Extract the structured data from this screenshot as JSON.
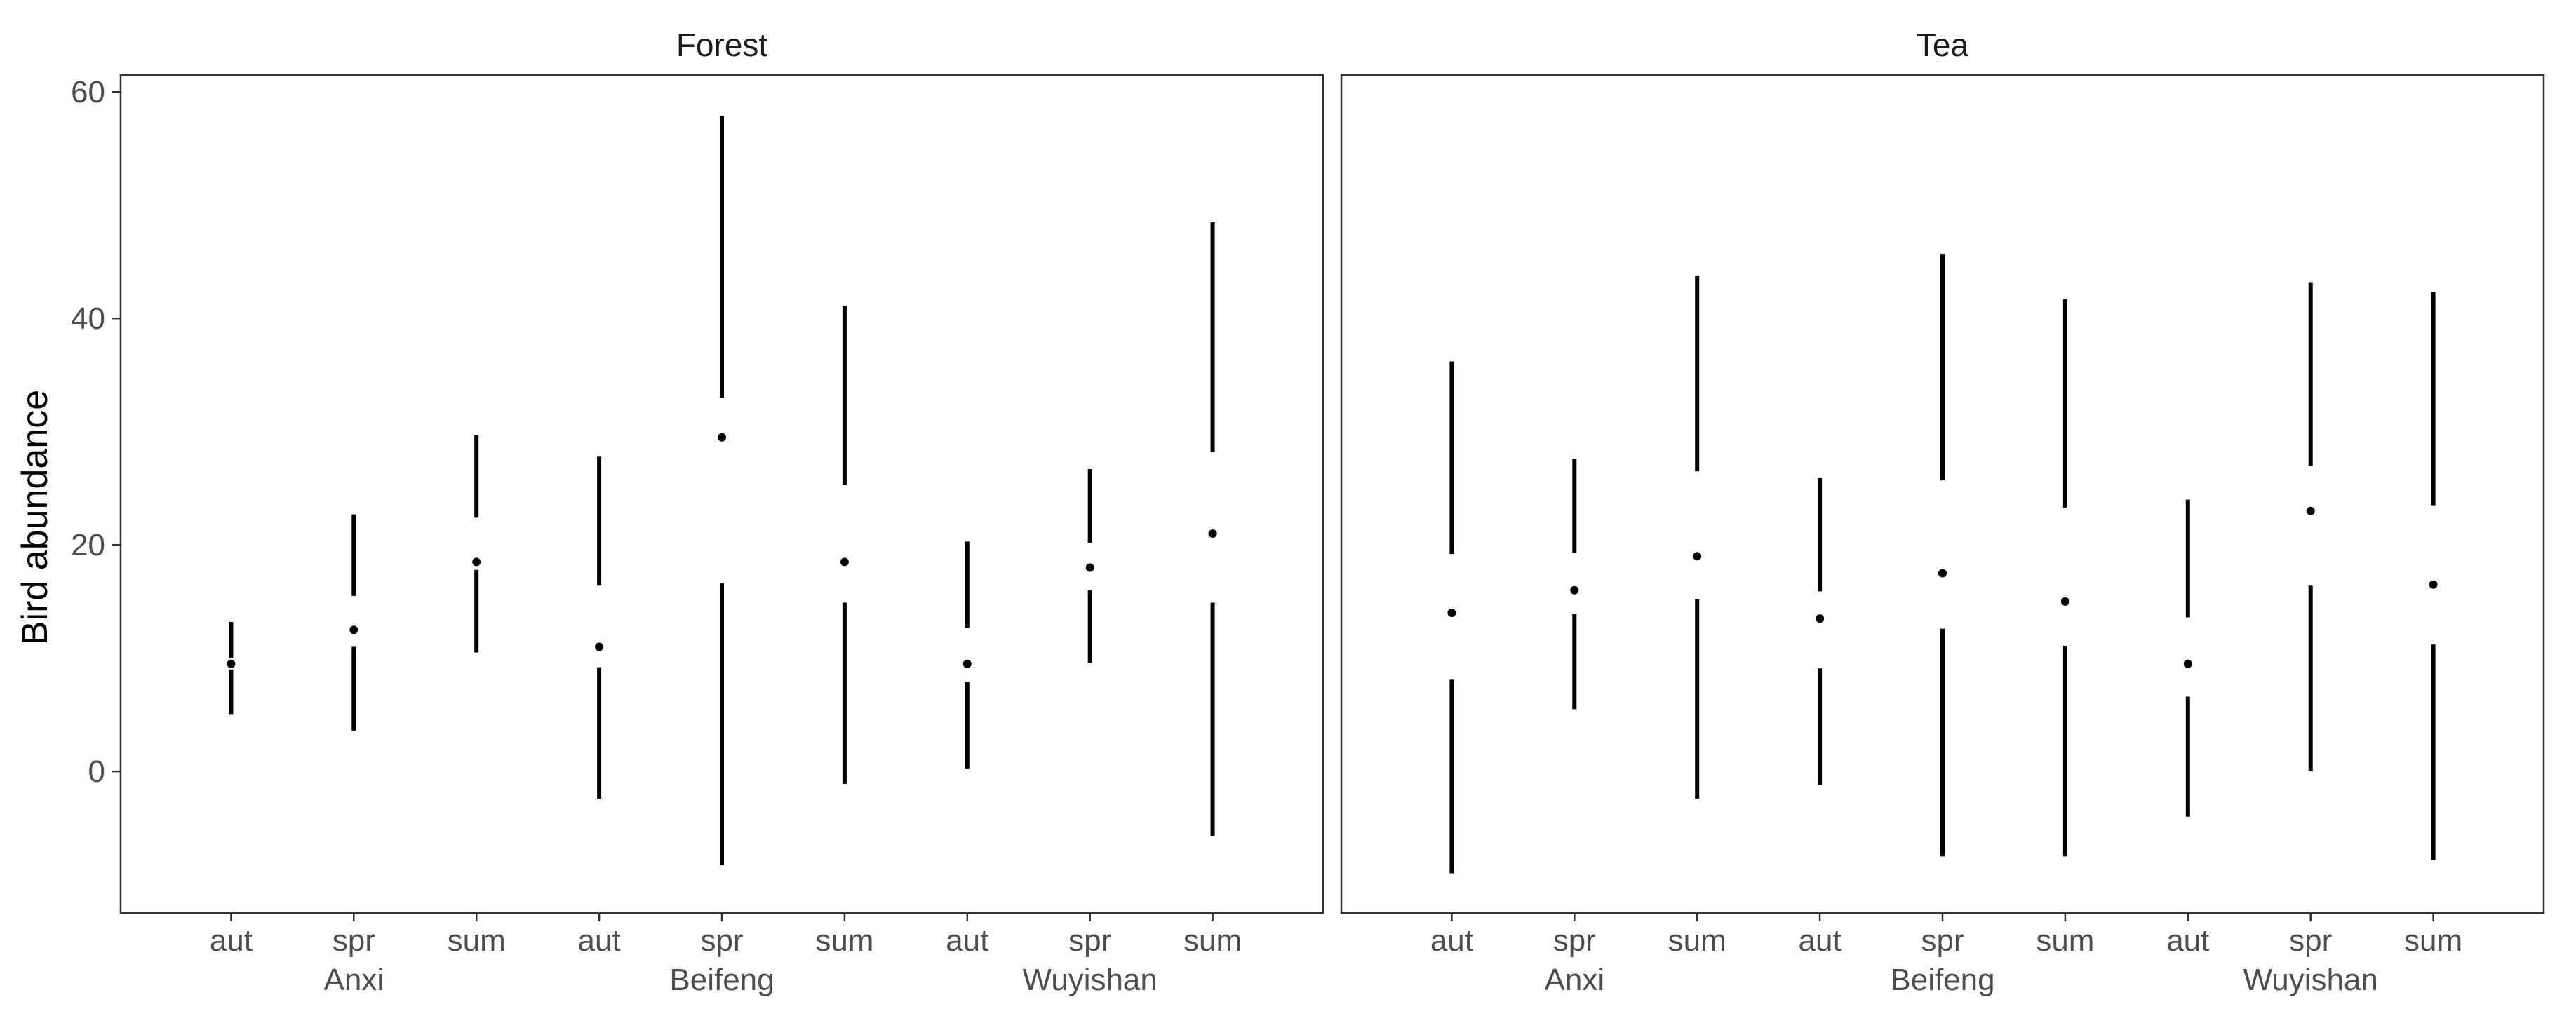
{
  "chart_data": {
    "type": "pointrange",
    "ylabel": "Bird abundance",
    "ylim": [
      -12.5,
      61.5
    ],
    "yticks": [
      0,
      20,
      40,
      60
    ],
    "groups": [
      "Anxi",
      "Beifeng",
      "Wuyishan"
    ],
    "seasons": [
      "aut",
      "spr",
      "sum"
    ],
    "panels": [
      {
        "title": "Forest",
        "points": [
          {
            "group": "Anxi",
            "season": "aut",
            "y": 9.5,
            "ymin": 5,
            "ymax": 13.2,
            "gap": [
              9,
              10
            ]
          },
          {
            "group": "Anxi",
            "season": "spr",
            "y": 12.5,
            "ymin": 3.6,
            "ymax": 22.7,
            "gap": [
              11,
              15.5
            ]
          },
          {
            "group": "Anxi",
            "season": "sum",
            "y": 18.5,
            "ymin": 10.5,
            "ymax": 29.7,
            "gap": [
              17.8,
              22.4
            ]
          },
          {
            "group": "Beifeng",
            "season": "aut",
            "y": 11,
            "ymin": -2.4,
            "ymax": 27.8,
            "gap": [
              9.2,
              16.4
            ]
          },
          {
            "group": "Beifeng",
            "season": "spr",
            "y": 29.5,
            "ymin": -8.3,
            "ymax": 57.9,
            "gap": [
              16.6,
              33
            ]
          },
          {
            "group": "Beifeng",
            "season": "sum",
            "y": 18.5,
            "ymin": -1.1,
            "ymax": 41.1,
            "gap": [
              14.9,
              25.3
            ]
          },
          {
            "group": "Wuyishan",
            "season": "aut",
            "y": 9.5,
            "ymin": 0.2,
            "ymax": 20.3,
            "gap": [
              7.9,
              12.7
            ]
          },
          {
            "group": "Wuyishan",
            "season": "spr",
            "y": 18,
            "ymin": 9.6,
            "ymax": 26.7,
            "gap": [
              16,
              20.2
            ]
          },
          {
            "group": "Wuyishan",
            "season": "sum",
            "y": 21,
            "ymin": -5.7,
            "ymax": 48.5,
            "gap": [
              14.9,
              28.2
            ]
          }
        ]
      },
      {
        "title": "Tea",
        "points": [
          {
            "group": "Anxi",
            "season": "aut",
            "y": 14,
            "ymin": -9,
            "ymax": 36.2,
            "gap": [
              8.1,
              19.2
            ]
          },
          {
            "group": "Anxi",
            "season": "spr",
            "y": 16,
            "ymin": 5.5,
            "ymax": 27.6,
            "gap": [
              13.9,
              19.3
            ]
          },
          {
            "group": "Anxi",
            "season": "sum",
            "y": 19,
            "ymin": -2.4,
            "ymax": 43.8,
            "gap": [
              15.2,
              26.5
            ]
          },
          {
            "group": "Beifeng",
            "season": "aut",
            "y": 13.5,
            "ymin": -1.2,
            "ymax": 25.9,
            "gap": [
              9.1,
              15.9
            ]
          },
          {
            "group": "Beifeng",
            "season": "spr",
            "y": 17.5,
            "ymin": -7.5,
            "ymax": 45.7,
            "gap": [
              12.6,
              25.7
            ]
          },
          {
            "group": "Beifeng",
            "season": "sum",
            "y": 15,
            "ymin": -7.5,
            "ymax": 41.7,
            "gap": [
              11.1,
              23.3
            ]
          },
          {
            "group": "Wuyishan",
            "season": "aut",
            "y": 9.5,
            "ymin": -4,
            "ymax": 24,
            "gap": [
              6.6,
              13.6
            ]
          },
          {
            "group": "Wuyishan",
            "season": "spr",
            "y": 23,
            "ymin": 0,
            "ymax": 43.2,
            "gap": [
              16.4,
              27
            ]
          },
          {
            "group": "Wuyishan",
            "season": "sum",
            "y": 16.5,
            "ymin": -7.8,
            "ymax": 42.3,
            "gap": [
              11.2,
              23.5
            ]
          }
        ]
      }
    ]
  }
}
